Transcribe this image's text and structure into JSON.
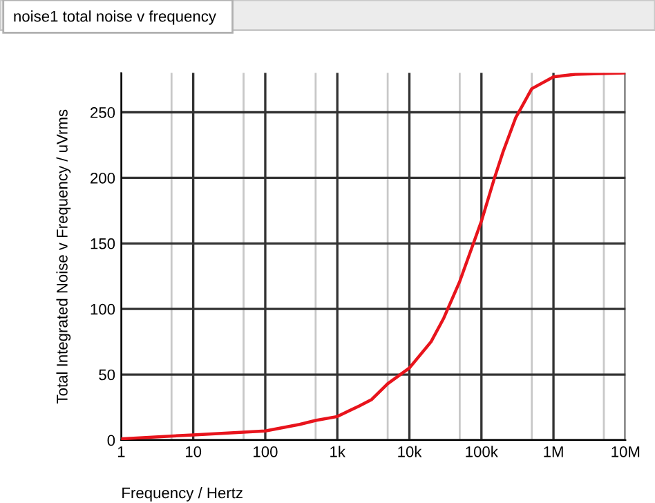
{
  "chart_data": {
    "type": "line",
    "title": "noise1 total noise v frequency",
    "xlabel": "Frequency / Hertz",
    "ylabel": "Total Integrated Noise v Frequency / uVrms",
    "log": "x",
    "grid": true,
    "marker": "none",
    "line_style": "solid",
    "xlim": [
      1,
      10000000
    ],
    "xticks": [
      {
        "value": 1,
        "label": "1"
      },
      {
        "value": 10,
        "label": "10"
      },
      {
        "value": 100,
        "label": "100"
      },
      {
        "value": 1000,
        "label": "1k"
      },
      {
        "value": 10000,
        "label": "10k"
      },
      {
        "value": 100000,
        "label": "100k"
      },
      {
        "value": 1000000,
        "label": "1M"
      },
      {
        "value": 10000000,
        "label": "10M"
      }
    ],
    "ylim": [
      0,
      280
    ],
    "yticks": [
      0,
      50,
      100,
      150,
      200,
      250
    ],
    "series": [
      {
        "color": "#e8141c",
        "x": [
          1,
          10,
          100,
          300,
          500,
          1000,
          2000,
          3000,
          5000,
          10000,
          20000,
          30000,
          50000,
          100000,
          150000,
          200000,
          300000,
          500000,
          1000000,
          2000000,
          10000000
        ],
        "values": [
          1,
          4,
          7,
          12,
          15,
          18,
          26,
          31,
          43,
          55,
          75,
          93,
          121,
          167,
          199,
          220,
          246,
          268,
          277,
          279,
          280
        ]
      }
    ]
  }
}
